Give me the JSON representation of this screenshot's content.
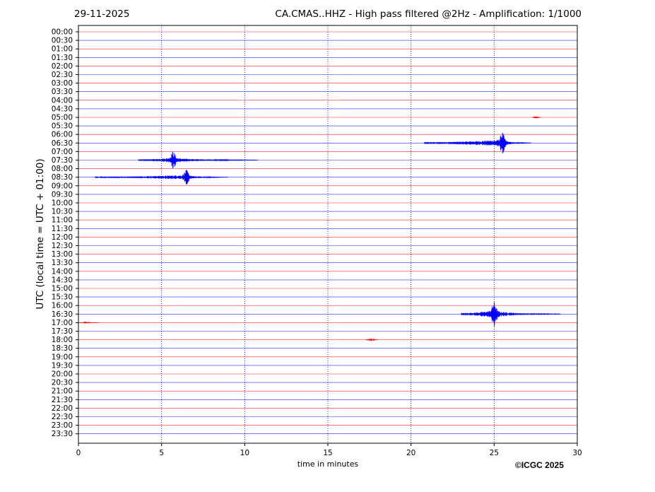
{
  "header": {
    "date": "29-11-2025",
    "title": "CA.CMAS..HHZ - High pass filtered @2Hz - Amplification: 1/1000"
  },
  "footer": {
    "copyright": "©ICGC 2025"
  },
  "chart_data": {
    "type": "line",
    "title": "CA.CMAS..HHZ - High pass filtered @2Hz - Amplification: 1/1000",
    "xlabel": "time in minutes",
    "ylabel": "UTC (local time = UTC + 01:00)",
    "xlim": [
      0,
      30
    ],
    "xticks": [
      0,
      5,
      10,
      15,
      20,
      25,
      30
    ],
    "vertical_gridlines_minutes": [
      5,
      10,
      15,
      20,
      25
    ],
    "row_labels": [
      "00:00",
      "00:30",
      "01:00",
      "01:30",
      "02:00",
      "02:30",
      "03:00",
      "03:30",
      "04:00",
      "04:30",
      "05:00",
      "05:30",
      "06:00",
      "06:30",
      "07:00",
      "07:30",
      "08:00",
      "08:30",
      "09:00",
      "09:30",
      "10:00",
      "10:30",
      "11:00",
      "11:30",
      "12:00",
      "12:30",
      "13:00",
      "13:30",
      "14:00",
      "14:30",
      "15:00",
      "15:30",
      "16:00",
      "16:30",
      "17:00",
      "17:30",
      "18:00",
      "18:30",
      "19:00",
      "19:30",
      "20:00",
      "20:30",
      "21:00",
      "21:30",
      "22:00",
      "22:30",
      "23:00",
      "23:30"
    ],
    "trace_colors": [
      "#ff0000",
      "#0000ff"
    ],
    "grid_color": "#00008b",
    "events": [
      {
        "row": "06:30",
        "start_min": 20.8,
        "end_min": 27.2,
        "peak_min": 25.5,
        "peak_amplitude": 1.6,
        "color": "#0000ff"
      },
      {
        "row": "07:30",
        "start_min": 3.6,
        "end_min": 10.8,
        "peak_min": 5.7,
        "peak_amplitude": 1.3,
        "color": "#0000ff"
      },
      {
        "row": "08:30",
        "start_min": 1.0,
        "end_min": 9.0,
        "peak_min": 6.5,
        "peak_amplitude": 1.1,
        "color": "#0000ff"
      },
      {
        "row": "16:30",
        "start_min": 23.0,
        "end_min": 29.0,
        "peak_min": 25.0,
        "peak_amplitude": 1.9,
        "color": "#0000ff"
      },
      {
        "row": "18:00",
        "start_min": 17.3,
        "end_min": 18.0,
        "peak_min": 17.6,
        "peak_amplitude": 0.2,
        "color": "#ff0000"
      },
      {
        "row": "05:00",
        "start_min": 27.3,
        "end_min": 27.8,
        "peak_min": 27.5,
        "peak_amplitude": 0.1,
        "color": "#ff0000"
      },
      {
        "row": "17:00",
        "start_min": 0.0,
        "end_min": 1.2,
        "peak_min": 0.5,
        "peak_amplitude": 0.1,
        "color": "#ff0000"
      }
    ]
  }
}
